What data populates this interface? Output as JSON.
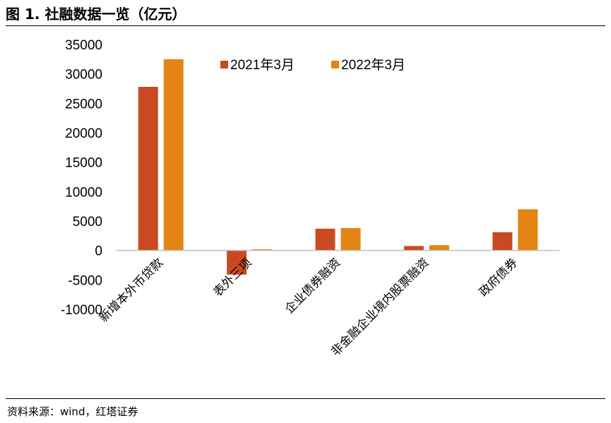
{
  "title": "图 1. 社融数据一览（亿元）",
  "source": "资料来源：wind，红塔证券",
  "colors": {
    "series1": "#C94A22",
    "series2": "#E48414",
    "axis": "#BFBFBF"
  },
  "chart_data": {
    "type": "bar",
    "categories": [
      "新增本外币贷款",
      "表外三项",
      "企业债券融资",
      "非金融企业境内股票融资",
      "政府债券"
    ],
    "series": [
      {
        "name": "2021年3月",
        "values": [
          27800,
          -4100,
          3700,
          750,
          3100
        ]
      },
      {
        "name": "2022年3月",
        "values": [
          32500,
          200,
          3800,
          900,
          7000
        ]
      }
    ],
    "ylim": [
      -10000,
      35000
    ],
    "yticks": [
      "-10000",
      "-5000",
      "0",
      "5000",
      "10000",
      "15000",
      "20000",
      "25000",
      "30000",
      "35000"
    ],
    "ytick_values": [
      -10000,
      -5000,
      0,
      5000,
      10000,
      15000,
      20000,
      25000,
      30000,
      35000
    ],
    "legend_position": "top",
    "grid": false
  }
}
